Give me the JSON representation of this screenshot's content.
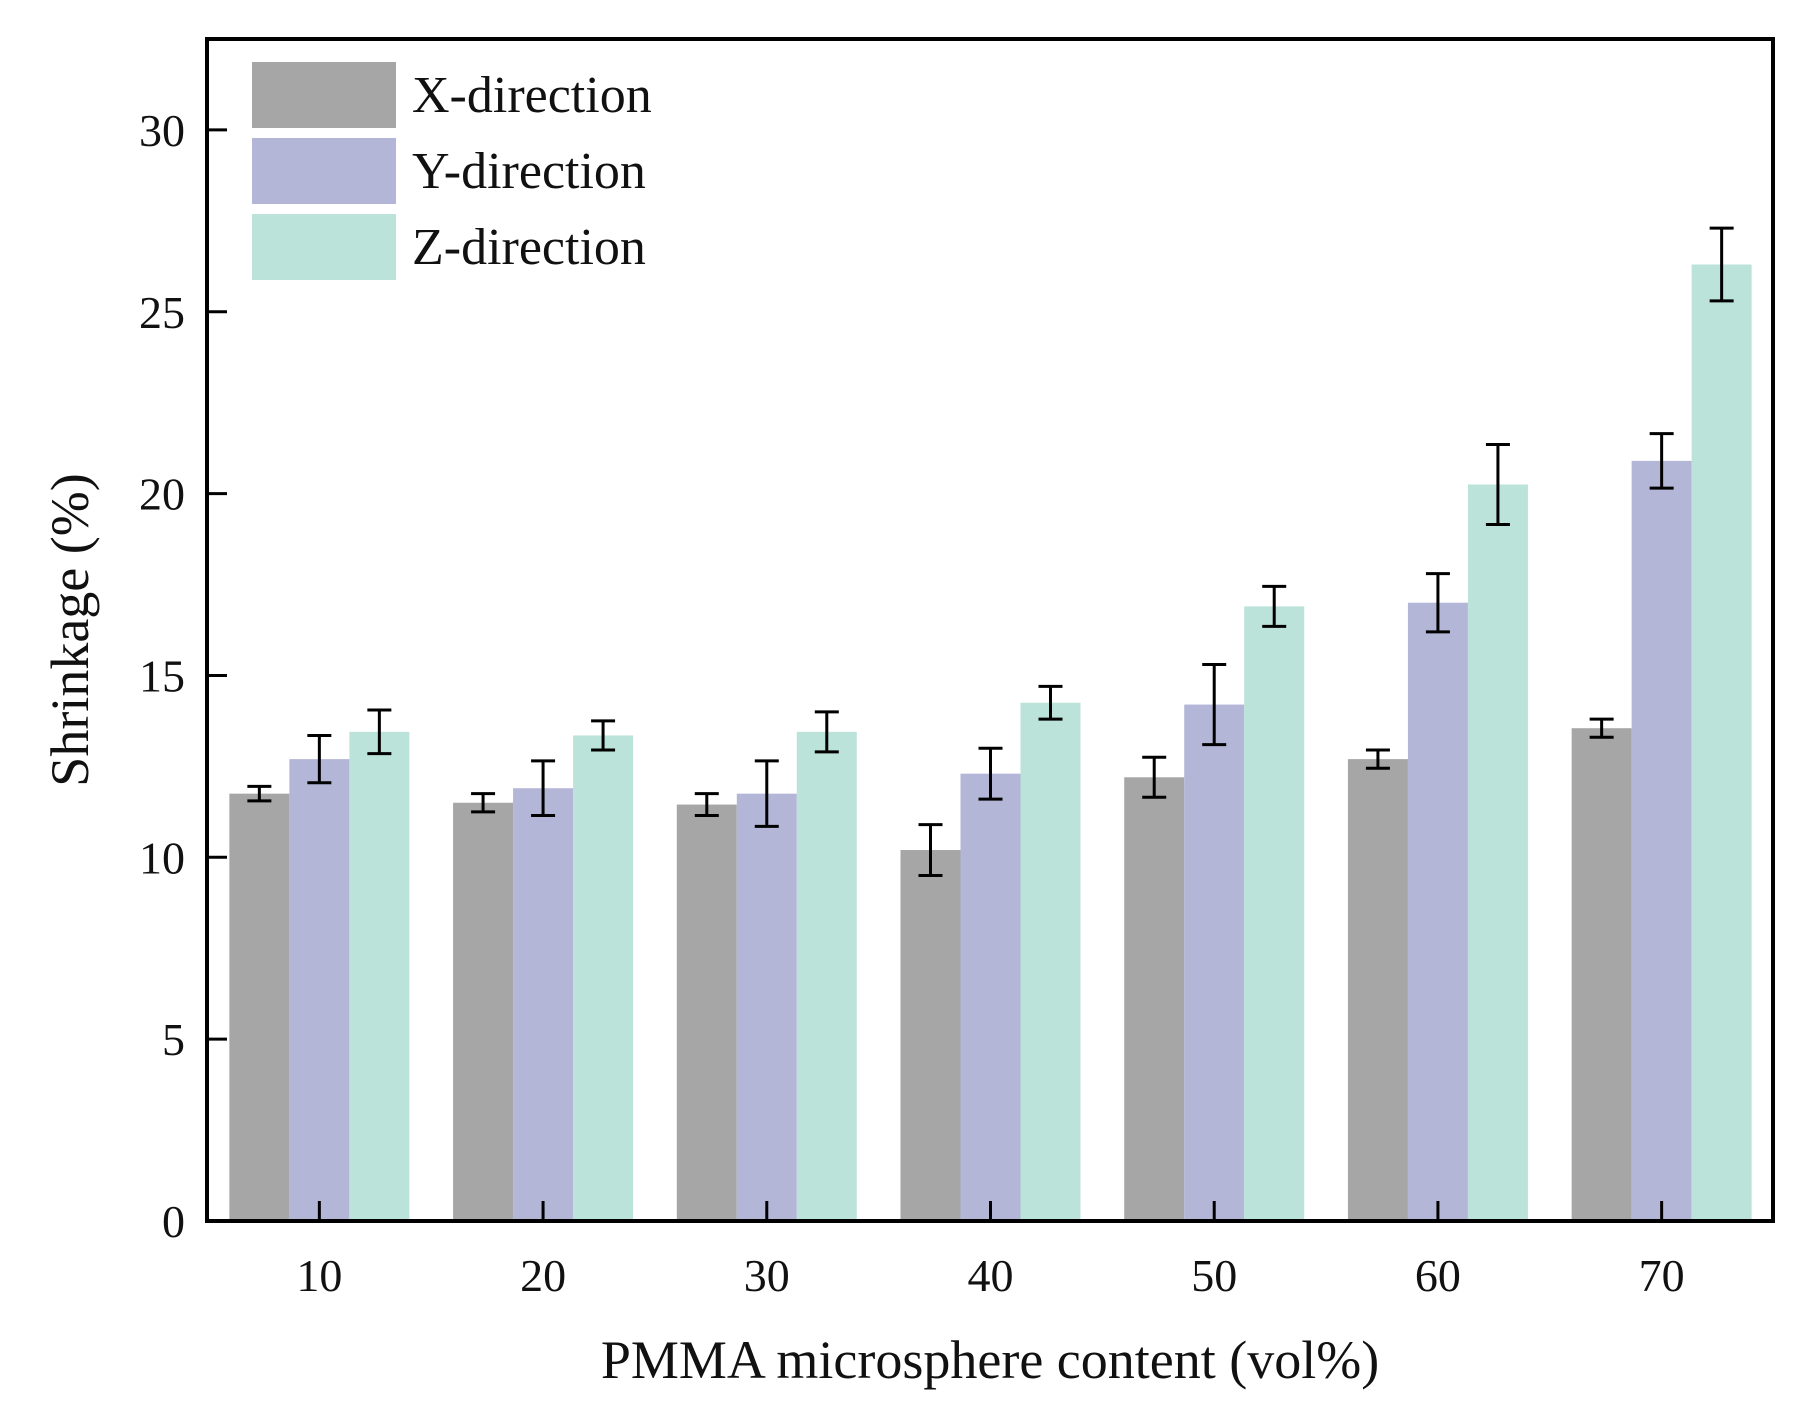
{
  "chart_data": {
    "type": "bar",
    "title": "",
    "xlabel": "PMMA microsphere content (vol%)",
    "ylabel": "Shrinkage (%)",
    "ylim": [
      0,
      32.5
    ],
    "yticks": [
      0,
      5,
      10,
      15,
      20,
      25,
      30
    ],
    "ytick_labels": [
      "0",
      "5",
      "10",
      "15",
      "20",
      "25",
      "30"
    ],
    "categories": [
      "10",
      "20",
      "30",
      "40",
      "50",
      "60",
      "70"
    ],
    "legend_position": "top-left",
    "grid": false,
    "series": [
      {
        "name": "X-direction",
        "color": "#a6a6a6",
        "values": [
          11.75,
          11.5,
          11.45,
          10.2,
          12.2,
          12.7,
          13.55
        ],
        "errors": [
          0.2,
          0.25,
          0.3,
          0.7,
          0.55,
          0.25,
          0.25
        ]
      },
      {
        "name": "Y-direction",
        "color": "#b4b6d8",
        "values": [
          12.7,
          11.9,
          11.75,
          12.3,
          14.2,
          17.0,
          20.9
        ],
        "errors": [
          0.65,
          0.75,
          0.9,
          0.7,
          1.1,
          0.8,
          0.75
        ]
      },
      {
        "name": "Z-direction",
        "color": "#bbe3d9",
        "values": [
          13.45,
          13.35,
          13.45,
          14.25,
          16.9,
          20.25,
          26.3
        ],
        "errors": [
          0.6,
          0.4,
          0.55,
          0.45,
          0.55,
          1.1,
          1.0
        ]
      }
    ]
  }
}
